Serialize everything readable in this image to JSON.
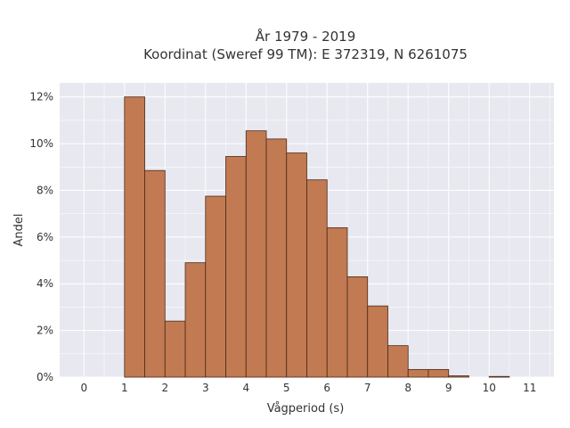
{
  "chart_data": {
    "type": "bar",
    "title_line1": "År 1979 - 2019",
    "title_line2": "Koordinat (Sweref 99 TM): E 372319, N 6261075",
    "xlabel": "Vågperiod (s)",
    "ylabel": "Andel",
    "x_ticks": [
      "0",
      "1",
      "2",
      "3",
      "4",
      "5",
      "6",
      "7",
      "8",
      "9",
      "10",
      "11"
    ],
    "y_ticks": [
      "0%",
      "2%",
      "4%",
      "6%",
      "8%",
      "10%",
      "12%"
    ],
    "xlim": [
      -0.6,
      11.6
    ],
    "ylim": [
      0,
      12.6
    ],
    "bin_width": 0.5,
    "bins": [
      {
        "start": 1.0,
        "value": 12.0
      },
      {
        "start": 1.5,
        "value": 8.85
      },
      {
        "start": 2.0,
        "value": 2.4
      },
      {
        "start": 2.5,
        "value": 4.9
      },
      {
        "start": 3.0,
        "value": 7.75
      },
      {
        "start": 3.5,
        "value": 9.45
      },
      {
        "start": 4.0,
        "value": 10.55
      },
      {
        "start": 4.5,
        "value": 10.2
      },
      {
        "start": 5.0,
        "value": 9.6
      },
      {
        "start": 5.5,
        "value": 8.45
      },
      {
        "start": 6.0,
        "value": 6.4
      },
      {
        "start": 6.5,
        "value": 4.3
      },
      {
        "start": 7.0,
        "value": 3.05
      },
      {
        "start": 7.5,
        "value": 1.35
      },
      {
        "start": 8.0,
        "value": 0.33
      },
      {
        "start": 8.5,
        "value": 0.33
      },
      {
        "start": 9.0,
        "value": 0.06
      },
      {
        "start": 9.5,
        "value": 0.0
      },
      {
        "start": 10.0,
        "value": 0.03
      }
    ],
    "grid": true,
    "colors": {
      "bar": "#c17a52",
      "bar_edge": "#4a2a18",
      "plot_background": "#e8e8f0",
      "grid": "#ffffff"
    }
  }
}
